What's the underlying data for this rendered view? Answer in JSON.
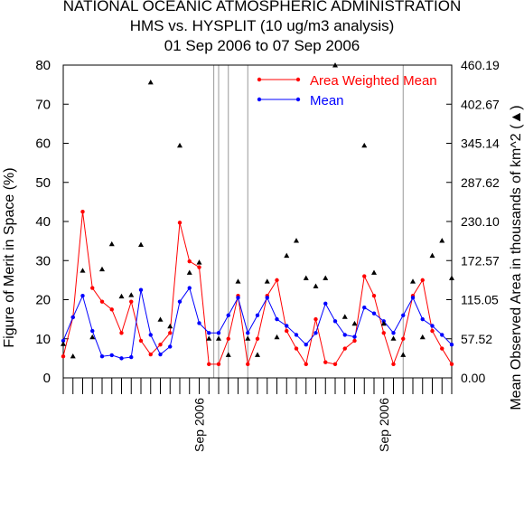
{
  "title_lines": [
    "NATIONAL OCEANIC ATMOSPHERIC ADMINISTRATION",
    "HMS vs. HYSPLIT (10 ug/m3 analysis)",
    "01 Sep 2006 to 07 Sep 2006"
  ],
  "chart_data": {
    "type": "line",
    "ylabel": "Figure of Merit in Space (%)",
    "y2label": "Mean Observed Area in thousands of km^2 (",
    "y2label_marker": "triangle",
    "y2label_close": ")",
    "ylim": [
      0,
      80
    ],
    "yticks": [
      "0",
      "10",
      "20",
      "30",
      "40",
      "50",
      "60",
      "70",
      "80"
    ],
    "y2lim": [
      0,
      460.19
    ],
    "y2ticks": [
      "0.00",
      "57.52",
      "115.05",
      "172.57",
      "230.10",
      "287.62",
      "345.14",
      "402.67",
      "460.19"
    ],
    "x_tick_labels": [
      {
        "label": "Sep 2006",
        "x": 28
      },
      {
        "label": "Sep 2006",
        "x": 66
      }
    ],
    "xlim": [
      0,
      80
    ],
    "vertical_lines": [
      31,
      32,
      34,
      38,
      70
    ],
    "legend_position": "top-right",
    "series": [
      {
        "name": "Area Weighted Mean",
        "color": "#ff0000",
        "points": [
          [
            0,
            5.5
          ],
          [
            2,
            15.5
          ],
          [
            4,
            42.5
          ],
          [
            6,
            23
          ],
          [
            8,
            19.5
          ],
          [
            10,
            17.5
          ],
          [
            12,
            11.5
          ],
          [
            14,
            19.5
          ],
          [
            16,
            9.5
          ],
          [
            18,
            6
          ],
          [
            20,
            8.5
          ],
          [
            22,
            11.5
          ],
          [
            24,
            39.7
          ],
          [
            26,
            29.8
          ],
          [
            28,
            28.3
          ],
          [
            30,
            3.5
          ],
          [
            32,
            3.5
          ],
          [
            34,
            10
          ],
          [
            36,
            21
          ],
          [
            38,
            3.5
          ],
          [
            40,
            10
          ],
          [
            42,
            21
          ],
          [
            44,
            25
          ],
          [
            46,
            12
          ],
          [
            48,
            7.5
          ],
          [
            50,
            3.5
          ],
          [
            52,
            15
          ],
          [
            54,
            4
          ],
          [
            56,
            3.5
          ],
          [
            58,
            7.5
          ],
          [
            60,
            9.5
          ],
          [
            62,
            26
          ],
          [
            64,
            21
          ],
          [
            66,
            11.5
          ],
          [
            68,
            3.5
          ],
          [
            70,
            10
          ],
          [
            72,
            21
          ],
          [
            74,
            25
          ],
          [
            76,
            12
          ],
          [
            78,
            7.5
          ],
          [
            80,
            3.5
          ]
        ]
      },
      {
        "name": "Mean",
        "color": "#0000ff",
        "points": [
          [
            0,
            9.5
          ],
          [
            2,
            15.5
          ],
          [
            4,
            21
          ],
          [
            6,
            12
          ],
          [
            8,
            5.5
          ],
          [
            10,
            5.8
          ],
          [
            12,
            5
          ],
          [
            14,
            5.3
          ],
          [
            16,
            22.5
          ],
          [
            18,
            11
          ],
          [
            20,
            6
          ],
          [
            22,
            8
          ],
          [
            24,
            19.5
          ],
          [
            26,
            23
          ],
          [
            28,
            14
          ],
          [
            30,
            11.5
          ],
          [
            32,
            11.5
          ],
          [
            34,
            16
          ],
          [
            36,
            20.5
          ],
          [
            38,
            11.5
          ],
          [
            40,
            16
          ],
          [
            42,
            20.5
          ],
          [
            44,
            15
          ],
          [
            46,
            13.3
          ],
          [
            48,
            11
          ],
          [
            50,
            8.5
          ],
          [
            52,
            11.5
          ],
          [
            54,
            19
          ],
          [
            56,
            14.5
          ],
          [
            58,
            11
          ],
          [
            60,
            10.5
          ],
          [
            62,
            18
          ],
          [
            64,
            16.5
          ],
          [
            66,
            14.5
          ],
          [
            68,
            11.5
          ],
          [
            70,
            16
          ],
          [
            72,
            20.5
          ],
          [
            74,
            15
          ],
          [
            76,
            13.3
          ],
          [
            78,
            11
          ],
          [
            80,
            8.5
          ]
        ]
      }
    ],
    "area_series": {
      "name": "Mean Observed Area",
      "marker": "triangle",
      "points": [
        [
          0,
          50
        ],
        [
          2,
          32
        ],
        [
          4,
          158
        ],
        [
          6,
          60
        ],
        [
          8,
          160
        ],
        [
          10,
          197
        ],
        [
          12,
          120
        ],
        [
          14,
          122
        ],
        [
          16,
          196
        ],
        [
          18,
          435
        ],
        [
          20,
          86
        ],
        [
          22,
          76
        ],
        [
          24,
          342
        ],
        [
          26,
          155
        ],
        [
          28,
          170
        ],
        [
          30,
          58
        ],
        [
          32,
          58
        ],
        [
          34,
          34
        ],
        [
          36,
          142
        ],
        [
          38,
          58
        ],
        [
          40,
          34
        ],
        [
          42,
          142
        ],
        [
          44,
          60
        ],
        [
          46,
          180
        ],
        [
          48,
          202
        ],
        [
          50,
          147
        ],
        [
          52,
          135
        ],
        [
          54,
          147
        ],
        [
          56,
          460
        ],
        [
          58,
          90
        ],
        [
          60,
          80
        ],
        [
          62,
          342
        ],
        [
          64,
          155
        ],
        [
          66,
          80
        ],
        [
          68,
          58
        ],
        [
          70,
          34
        ],
        [
          72,
          142
        ],
        [
          74,
          60
        ],
        [
          76,
          180
        ],
        [
          78,
          202
        ],
        [
          80,
          147
        ]
      ]
    }
  }
}
